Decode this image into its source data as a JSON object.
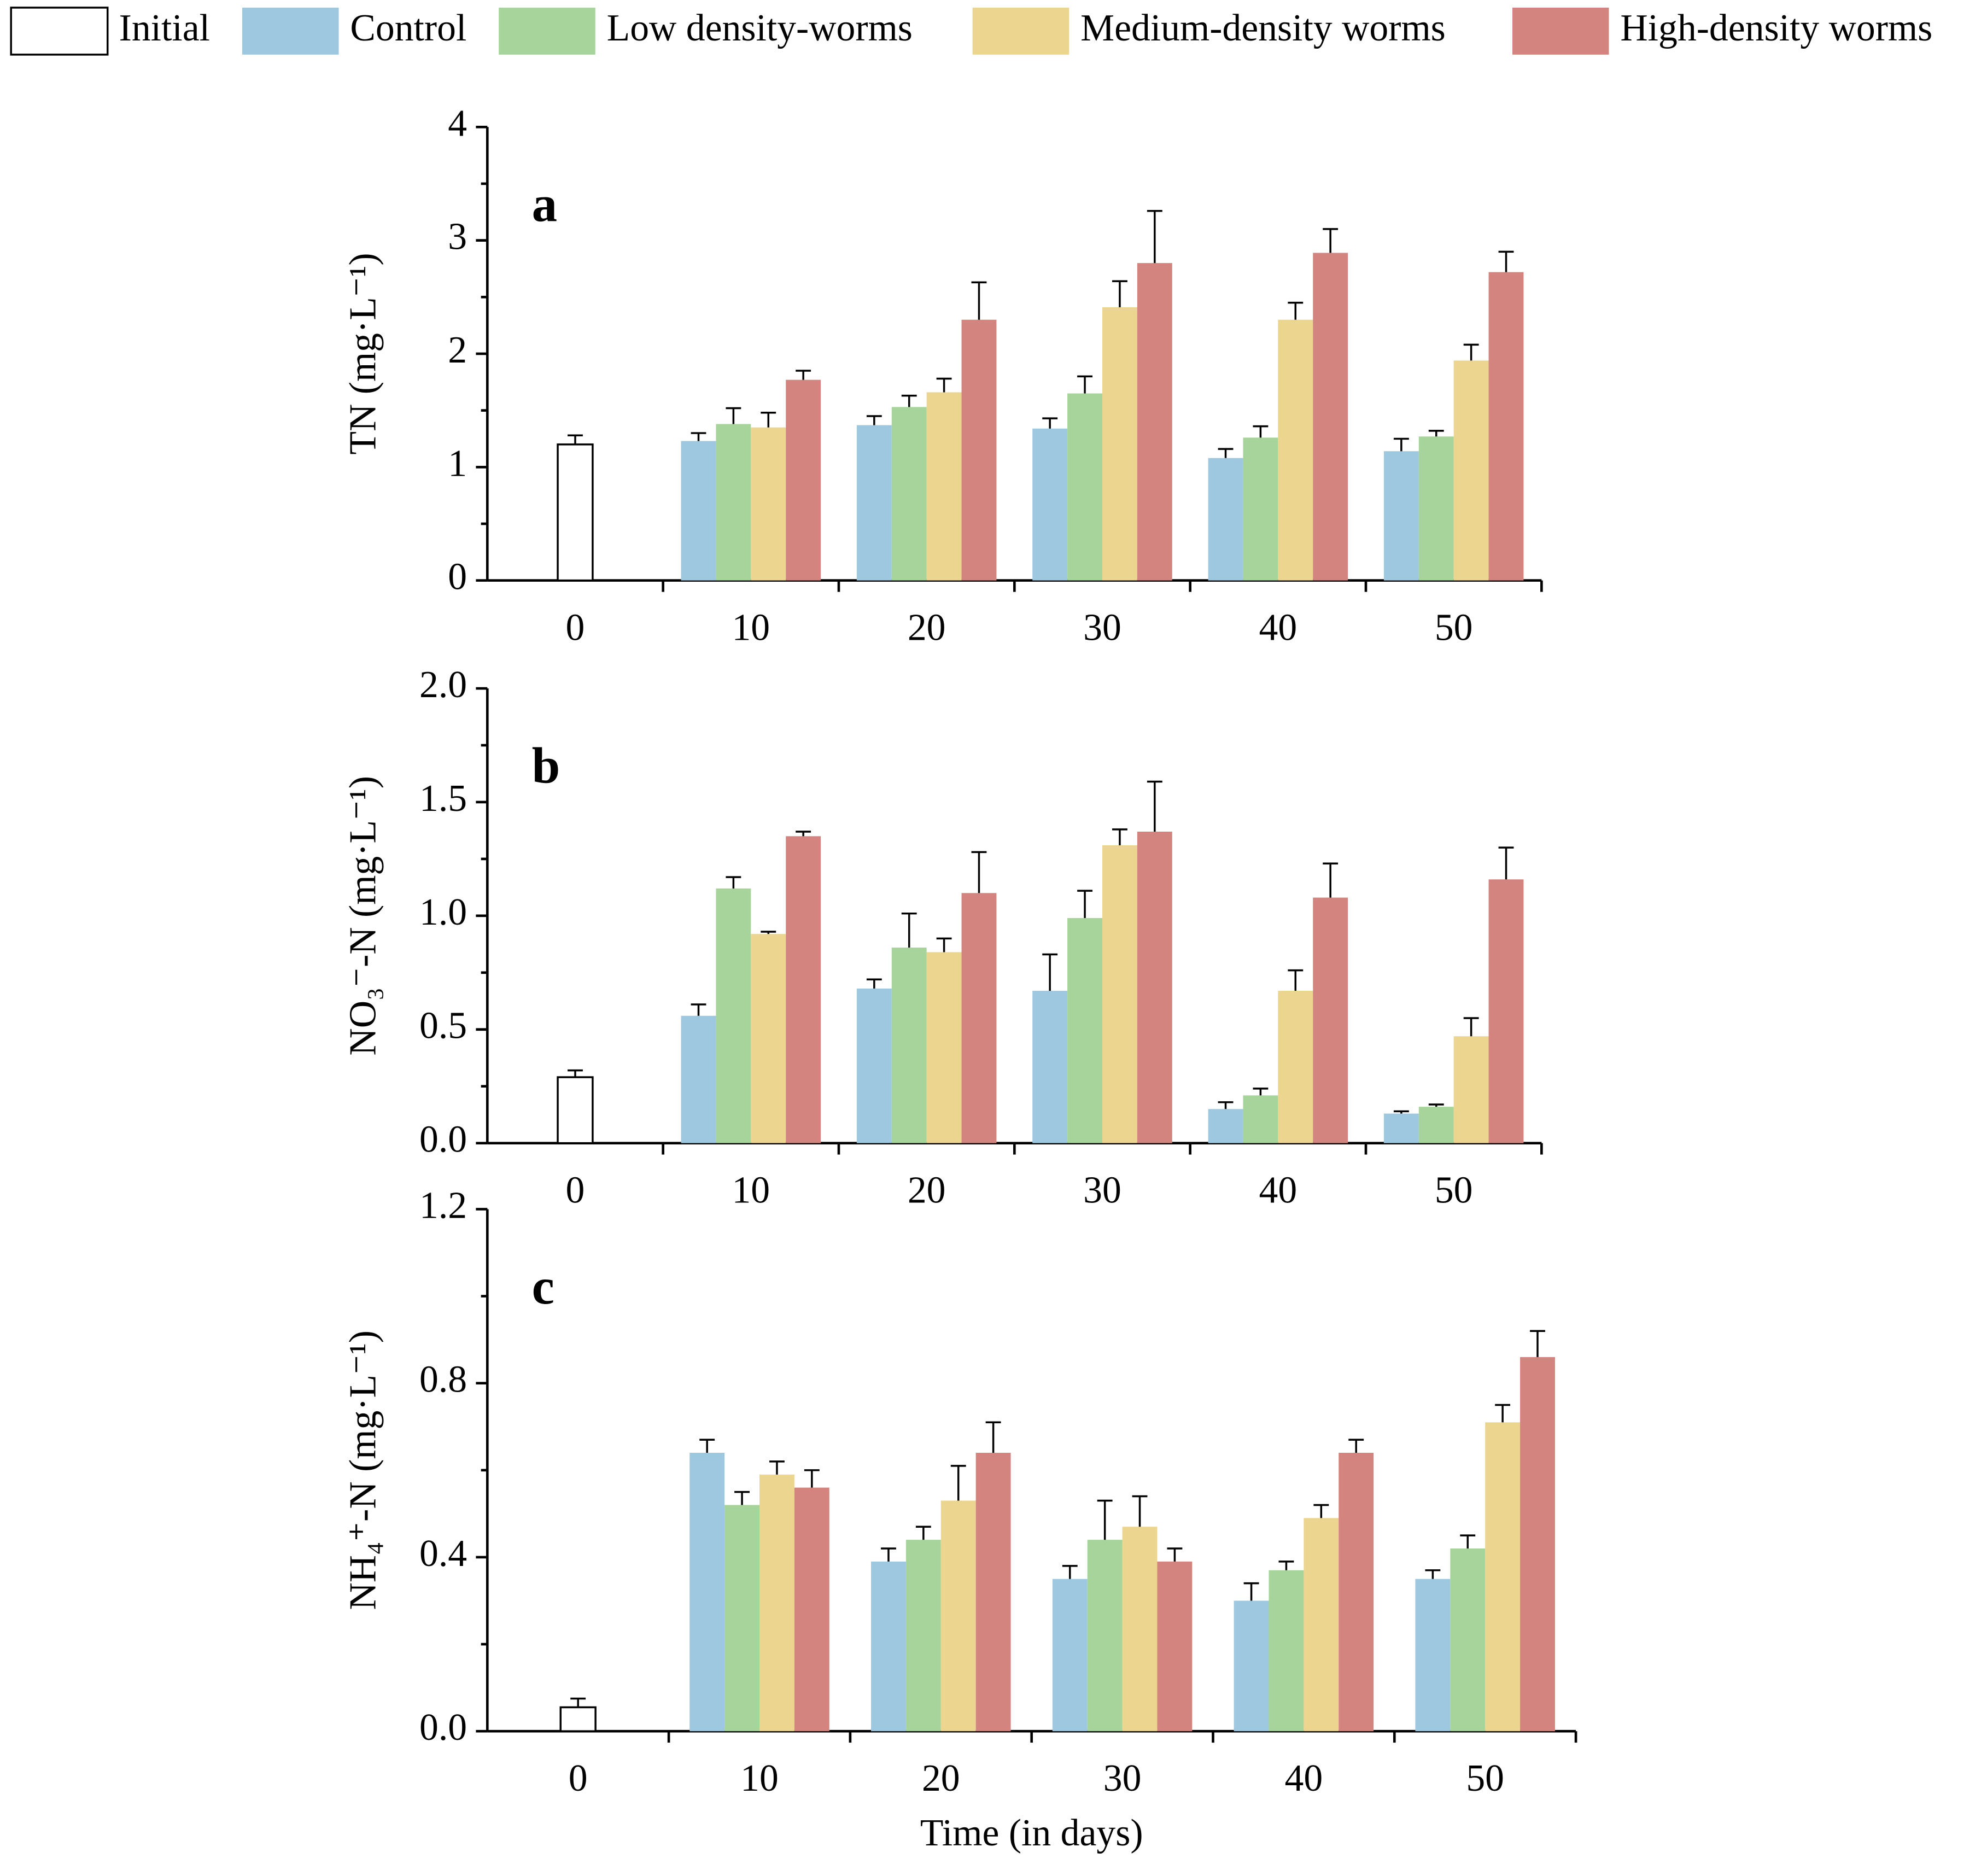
{
  "chart_data": [
    {
      "type": "bar",
      "annotation": "a",
      "y_label": "TN (mg·L⁻¹)",
      "categories": [
        "0",
        "10",
        "20",
        "30",
        "40",
        "50"
      ],
      "ylim": [
        0,
        4
      ],
      "yticks": [
        0,
        1,
        2,
        3,
        4
      ],
      "series": [
        {
          "name": "Initial",
          "color": "#ffffff",
          "values": [
            1.2,
            null,
            null,
            null,
            null,
            null
          ],
          "errors": [
            0.08,
            null,
            null,
            null,
            null,
            null
          ]
        },
        {
          "name": "Control",
          "color": "#9dc8e0",
          "values": [
            null,
            1.23,
            1.37,
            1.34,
            1.08,
            1.14
          ],
          "errors": [
            null,
            0.07,
            0.08,
            0.09,
            0.08,
            0.11
          ]
        },
        {
          "name": "Low density-worms",
          "color": "#a6d49a",
          "values": [
            null,
            1.38,
            1.53,
            1.65,
            1.26,
            1.27
          ],
          "errors": [
            null,
            0.14,
            0.1,
            0.15,
            0.1,
            0.05
          ]
        },
        {
          "name": "Medium-density worms",
          "color": "#ecd58f",
          "values": [
            null,
            1.35,
            1.66,
            2.41,
            2.3,
            1.94
          ],
          "errors": [
            null,
            0.13,
            0.12,
            0.23,
            0.15,
            0.14
          ]
        },
        {
          "name": "High-density worms",
          "color": "#d4847e",
          "values": [
            null,
            1.77,
            2.3,
            2.8,
            2.89,
            2.72
          ],
          "errors": [
            null,
            0.08,
            0.33,
            0.46,
            0.21,
            0.18
          ]
        }
      ]
    },
    {
      "type": "bar",
      "annotation": "b",
      "y_label": "NO₃⁻-N (mg·L⁻¹)",
      "categories": [
        "0",
        "10",
        "20",
        "30",
        "40",
        "50"
      ],
      "ylim": [
        0,
        2
      ],
      "yticks": [
        {
          "value": 0,
          "label": "0.0"
        },
        0.5,
        {
          "value": 1,
          "label": "1.0"
        },
        1.5,
        {
          "value": 2,
          "label": "2.0"
        }
      ],
      "series": [
        {
          "color": "#ffffff",
          "values": [
            0.29,
            null,
            null,
            null,
            null,
            null
          ],
          "errors": [
            0.03,
            null,
            null,
            null,
            null,
            null
          ]
        },
        {
          "color": "#9dc8e0",
          "values": [
            null,
            0.56,
            0.68,
            0.67,
            0.15,
            0.13
          ],
          "errors": [
            null,
            0.05,
            0.04,
            0.16,
            0.03,
            0.01
          ]
        },
        {
          "color": "#a6d49a",
          "values": [
            null,
            1.12,
            0.86,
            0.99,
            0.21,
            0.16
          ],
          "errors": [
            null,
            0.05,
            0.15,
            0.12,
            0.03,
            0.01
          ]
        },
        {
          "color": "#ecd58f",
          "values": [
            null,
            0.92,
            0.84,
            1.31,
            0.67,
            0.47
          ],
          "errors": [
            null,
            0.01,
            0.06,
            0.07,
            0.09,
            0.08
          ]
        },
        {
          "color": "#d4847e",
          "values": [
            null,
            1.35,
            1.1,
            1.37,
            1.08,
            1.16
          ],
          "errors": [
            null,
            0.02,
            0.18,
            0.22,
            0.15,
            0.14
          ]
        }
      ]
    },
    {
      "type": "bar",
      "annotation": "c",
      "y_label": "NH₄⁺-N (mg·L⁻¹)",
      "x_label": "Time (in days)",
      "categories": [
        "0",
        "10",
        "20",
        "30",
        "40",
        "50"
      ],
      "ylim": [
        0,
        1.2
      ],
      "yticks": [
        {
          "value": 0,
          "label": "0.0"
        },
        0.4,
        0.8,
        1.2
      ],
      "series": [
        {
          "color": "#ffffff",
          "values": [
            0.055,
            null,
            null,
            null,
            null,
            null
          ],
          "errors": [
            0.02,
            null,
            null,
            null,
            null,
            null
          ]
        },
        {
          "color": "#9dc8e0",
          "values": [
            null,
            0.64,
            0.39,
            0.35,
            0.3,
            0.35
          ],
          "errors": [
            null,
            0.03,
            0.03,
            0.03,
            0.04,
            0.02
          ]
        },
        {
          "color": "#a6d49a",
          "values": [
            null,
            0.52,
            0.44,
            0.44,
            0.37,
            0.42
          ],
          "errors": [
            null,
            0.03,
            0.03,
            0.09,
            0.02,
            0.03
          ]
        },
        {
          "color": "#ecd58f",
          "values": [
            null,
            0.59,
            0.53,
            0.47,
            0.49,
            0.71
          ],
          "errors": [
            null,
            0.03,
            0.08,
            0.07,
            0.03,
            0.04
          ]
        },
        {
          "color": "#d4847e",
          "values": [
            null,
            0.56,
            0.64,
            0.39,
            0.64,
            0.86
          ],
          "errors": [
            null,
            0.04,
            0.07,
            0.03,
            0.03,
            0.06
          ]
        }
      ]
    }
  ]
}
